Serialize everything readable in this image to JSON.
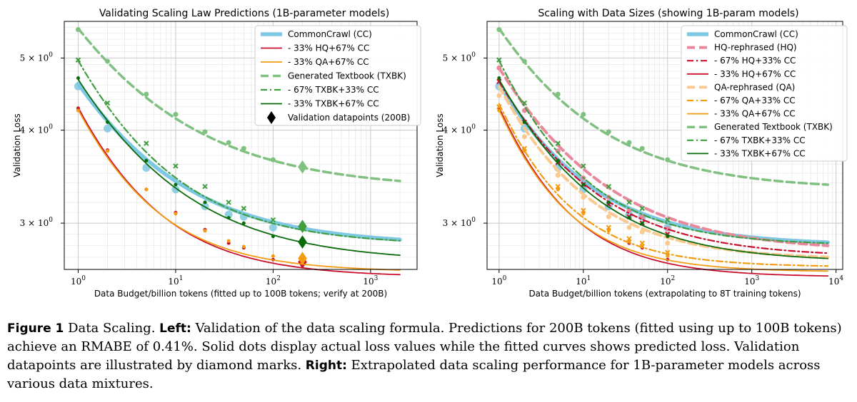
{
  "colors": {
    "cc": "#7ec8e3",
    "hq": "#e8889a",
    "hq_dark": "#c8102e",
    "qa": "#f9c98f",
    "qa_dark": "#f39c12",
    "txbk": "#80c080",
    "txbk_mid": "#3f9e3f",
    "txbk_dark": "#0a6b0a"
  },
  "chart_data": [
    {
      "type": "line",
      "title": "Validating Scaling Law Predictions (1B-parameter models)",
      "xlabel": "Data Budget/billion tokens (fitted up to 100B tokens; verify at 200B)",
      "ylabel": "Validation Loss",
      "xscale": "log",
      "yscale": "log",
      "xlim": [
        0.72,
        3000
      ],
      "ylim": [
        2.6,
        5.6
      ],
      "xticks": [
        {
          "v": 1,
          "b": "10",
          "e": "0"
        },
        {
          "v": 10,
          "b": "10",
          "e": "1"
        },
        {
          "v": 100,
          "b": "10",
          "e": "2"
        },
        {
          "v": 1000,
          "b": "10",
          "e": "3"
        }
      ],
      "yticks": [
        {
          "v": 3,
          "b": "3 × 10",
          "e": "0"
        },
        {
          "v": 4,
          "b": "4 × 10",
          "e": "0"
        },
        {
          "v": 5,
          "b": "5 × 10",
          "e": "0"
        }
      ],
      "grid": true,
      "legend_position": "top-right",
      "x_points": [
        1,
        2,
        5,
        10,
        20,
        35,
        50,
        100
      ],
      "x_curve_max": 2000,
      "validation_x": 200,
      "series": [
        {
          "name": "CommonCrawl (CC)",
          "key": "cc",
          "style": "thick",
          "L": 2.8,
          "A": 1.82,
          "alpha": 0.47,
          "points": [
            4.58,
            4.02,
            3.56,
            3.33,
            3.16,
            3.08,
            3.06,
            2.96
          ],
          "validation": null
        },
        {
          "name": "- 33% HQ+67% CC",
          "key": "hq_dark",
          "style": "solid",
          "L": 2.54,
          "A": 1.75,
          "alpha": 0.6,
          "points": [
            4.28,
            3.76,
            3.33,
            3.1,
            2.94,
            2.82,
            2.78,
            2.68
          ],
          "validation": 2.66
        },
        {
          "name": "- 33% QA+67% CC",
          "key": "qa_dark",
          "style": "solid",
          "L": 2.58,
          "A": 1.68,
          "alpha": 0.62,
          "points": [
            4.25,
            3.75,
            3.33,
            3.09,
            2.93,
            2.84,
            2.79,
            2.71
          ],
          "validation": 2.69
        },
        {
          "name": "Generated Textbook (TXBK)",
          "key": "txbk",
          "style": "dashed",
          "L": 3.33,
          "A": 2.15,
          "alpha": 0.42,
          "points": [
            5.46,
            4.95,
            4.47,
            4.2,
            3.98,
            3.85,
            3.78,
            3.65
          ],
          "validation": 3.57
        },
        {
          "name": "- 67% TXBK+33% CC",
          "key": "txbk_mid",
          "style": "dashdot",
          "L": 2.8,
          "A": 2.16,
          "alpha": 0.52,
          "points": [
            4.97,
            4.35,
            3.84,
            3.58,
            3.36,
            3.2,
            3.14,
            3.03
          ],
          "validation": 2.97
        },
        {
          "name": "- 33% TXBK+67% CC",
          "key": "txbk_dark",
          "style": "solid",
          "L": 2.66,
          "A": 2.02,
          "alpha": 0.47,
          "points": [
            4.7,
            4.1,
            3.64,
            3.38,
            3.2,
            3.05,
            3.0,
            2.88
          ],
          "validation": 2.83
        },
        {
          "name": "Validation datapoints (200B)",
          "key": "validation",
          "style": "diamond"
        }
      ]
    },
    {
      "type": "line",
      "title": "Scaling with Data Sizes (showing 1B-param models)",
      "xlabel": "Data Budget/billion tokens (extrapolating to 8T training tokens)",
      "ylabel": "Validation Loss",
      "xscale": "log",
      "yscale": "log",
      "xlim": [
        0.72,
        12000
      ],
      "ylim": [
        2.6,
        5.6
      ],
      "xticks": [
        {
          "v": 1,
          "b": "10",
          "e": "0"
        },
        {
          "v": 10,
          "b": "10",
          "e": "1"
        },
        {
          "v": 100,
          "b": "10",
          "e": "2"
        },
        {
          "v": 1000,
          "b": "10",
          "e": "3"
        },
        {
          "v": 10000,
          "b": "10",
          "e": "4"
        }
      ],
      "yticks": [
        {
          "v": 3,
          "b": "3 × 10",
          "e": "0"
        },
        {
          "v": 4,
          "b": "4 × 10",
          "e": "0"
        },
        {
          "v": 5,
          "b": "5 × 10",
          "e": "0"
        }
      ],
      "grid": true,
      "legend_position": "top-right",
      "x_points": [
        1,
        2,
        5,
        10,
        20,
        35,
        50,
        100
      ],
      "x_curve_max": 8000,
      "series": [
        {
          "name": "CommonCrawl (CC)",
          "key": "cc",
          "style": "thick",
          "L": 2.8,
          "A": 1.82,
          "alpha": 0.47,
          "points": [
            4.58,
            4.02,
            3.56,
            3.33,
            3.16,
            3.08,
            3.06,
            2.96
          ]
        },
        {
          "name": "HQ-rephrased (HQ)",
          "key": "hq",
          "style": "dashed-thick",
          "L": 2.75,
          "A": 2.1,
          "alpha": 0.42,
          "points": [
            4.85,
            4.25,
            3.75,
            3.45,
            3.25,
            3.12,
            3.06,
            2.95
          ]
        },
        {
          "name": "- 67% HQ+33% CC",
          "key": "hq_dark",
          "style": "dashdot",
          "L": 2.7,
          "A": 1.95,
          "alpha": 0.45,
          "points": [
            4.65,
            4.1,
            3.62,
            3.38,
            3.18,
            3.06,
            3.0,
            2.9
          ]
        },
        {
          "name": "- 33% HQ+67% CC",
          "key": "hq_dark",
          "style": "solid",
          "L": 2.54,
          "A": 1.75,
          "alpha": 0.6,
          "points": [
            4.28,
            3.76,
            3.33,
            3.1,
            2.94,
            2.82,
            2.78,
            2.68
          ]
        },
        {
          "name": "QA-rephrased (QA)",
          "key": "qa",
          "style": "dashed-thick",
          "L": 2.68,
          "A": 1.9,
          "alpha": 0.5,
          "points": [
            4.45,
            3.92,
            3.48,
            3.25,
            3.06,
            2.96,
            2.92,
            2.82
          ]
        },
        {
          "name": "- 67% QA+33% CC",
          "key": "qa_dark",
          "style": "dashdot",
          "L": 2.62,
          "A": 1.72,
          "alpha": 0.6,
          "points": [
            4.3,
            3.78,
            3.36,
            3.12,
            2.96,
            2.86,
            2.82,
            2.74
          ]
        },
        {
          "name": "- 33% QA+67% CC",
          "key": "qa_dark",
          "style": "solid",
          "L": 2.58,
          "A": 1.68,
          "alpha": 0.62,
          "points": [
            4.25,
            3.75,
            3.33,
            3.09,
            2.93,
            2.84,
            2.79,
            2.71
          ]
        },
        {
          "name": "Generated Textbook (TXBK)",
          "key": "txbk",
          "style": "dashed",
          "L": 3.33,
          "A": 2.15,
          "alpha": 0.42,
          "points": [
            5.46,
            4.95,
            4.47,
            4.2,
            3.98,
            3.85,
            3.78,
            3.65
          ]
        },
        {
          "name": "- 67% TXBK+33% CC",
          "key": "txbk_mid",
          "style": "dashdot",
          "L": 2.8,
          "A": 2.16,
          "alpha": 0.52,
          "points": [
            4.97,
            4.35,
            3.84,
            3.58,
            3.36,
            3.2,
            3.14,
            3.03
          ]
        },
        {
          "name": "- 33% TXBK+67% CC",
          "key": "txbk_dark",
          "style": "solid",
          "L": 2.66,
          "A": 2.02,
          "alpha": 0.47,
          "points": [
            4.7,
            4.1,
            3.64,
            3.38,
            3.2,
            3.05,
            3.0,
            2.88
          ]
        }
      ]
    }
  ],
  "caption": {
    "figure_label": "Figure 1",
    "intro": " Data Scaling. ",
    "left_label": "Left:",
    "left_text": " Validation of the data scaling formula. Predictions for 200B tokens (fitted using up to 100B tokens) achieve an RMABE of 0.41%. Solid dots display actual loss values while the fitted curves shows predicted loss. Validation datapoints are illustrated by diamond marks. ",
    "right_label": "Right:",
    "right_text": " Extrapolated data scaling performance for 1B-parameter models across various data mixtures."
  }
}
